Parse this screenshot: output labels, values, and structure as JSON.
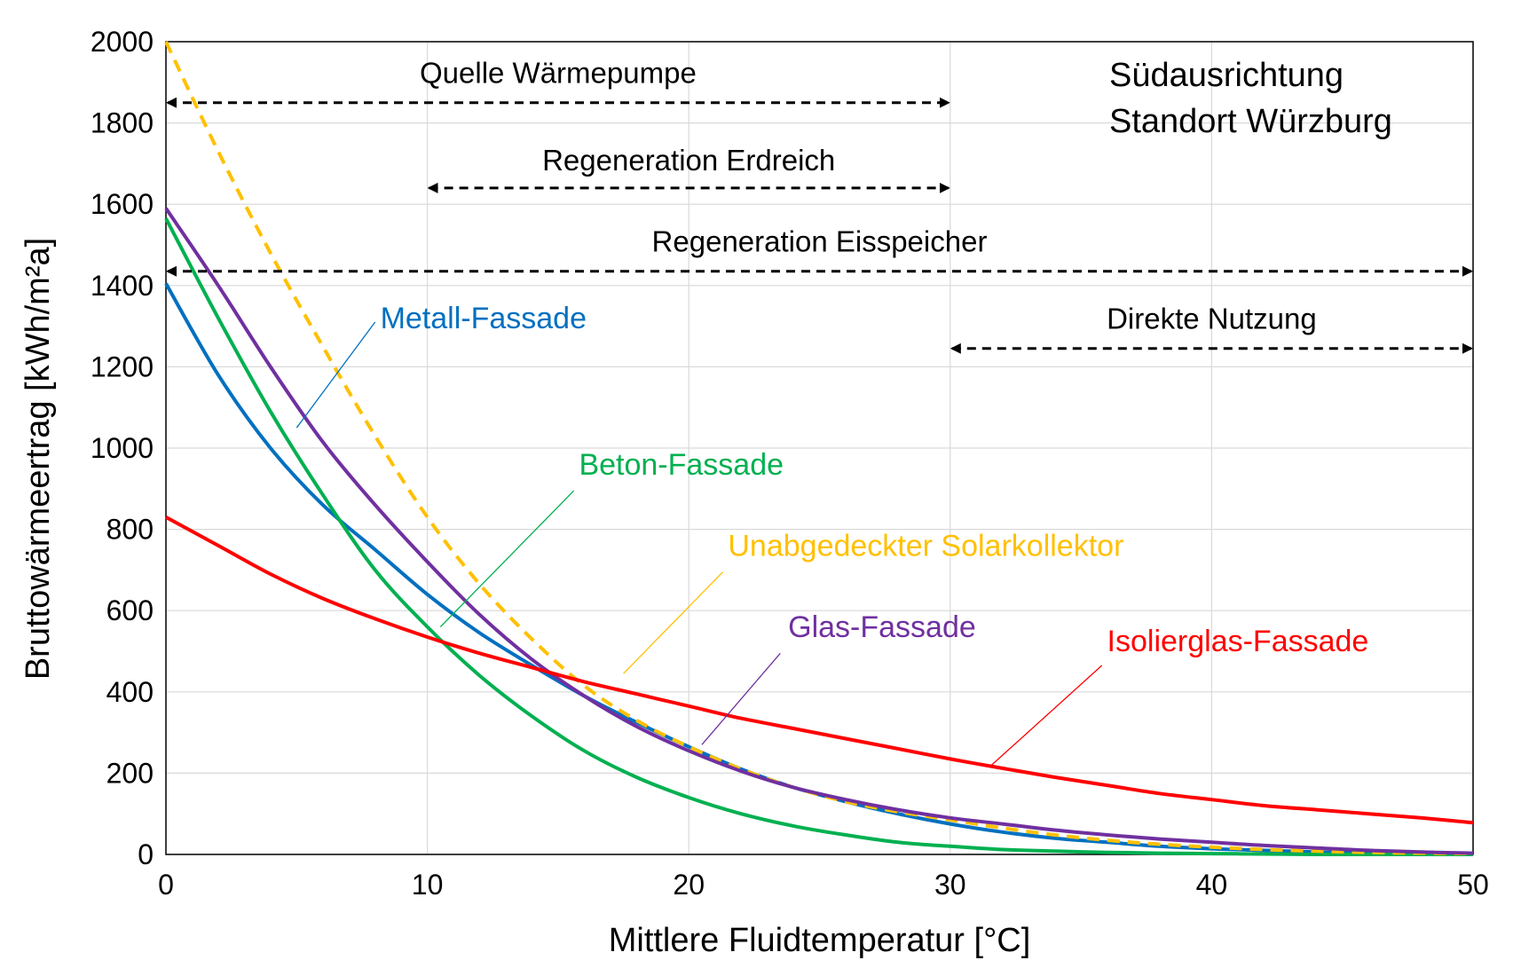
{
  "chart_data": {
    "type": "line",
    "xlabel": "Mittlere Fluidtemperatur [°C]",
    "ylabel": "Bruttowärmeertrag [kWh/m²a]",
    "xlim": [
      0,
      50
    ],
    "ylim": [
      0,
      2000
    ],
    "x_ticks": [
      "0",
      "10",
      "20",
      "30",
      "40",
      "50"
    ],
    "y_ticks": [
      "0",
      "200",
      "400",
      "600",
      "800",
      "1000",
      "1200",
      "1400",
      "1600",
      "1800",
      "2000"
    ],
    "grid": true,
    "info_lines": [
      "Südausrichtung",
      "Standort Würzburg"
    ],
    "ranges": [
      {
        "label": "Quelle Wärmepumpe",
        "from": 0,
        "to": 30,
        "y": 1850,
        "label_y": 1925
      },
      {
        "label": "Regeneration Erdreich",
        "from": 10,
        "to": 30,
        "y": 1640,
        "label_y": 1710
      },
      {
        "label": "Regeneration Eisspeicher",
        "from": 0,
        "to": 50,
        "y": 1435,
        "label_y": 1510
      },
      {
        "label": "Direkte Nutzung",
        "from": 30,
        "to": 50,
        "y": 1245,
        "label_y": 1320
      }
    ],
    "series": [
      {
        "name": "Metall-Fassade",
        "color": "#0070C0",
        "dash": false,
        "x": [
          0,
          2,
          4,
          6,
          8,
          10,
          12,
          14,
          16,
          18,
          20,
          22,
          24,
          26,
          28,
          30,
          32,
          34,
          36,
          38,
          40,
          42,
          44,
          46,
          48,
          50
        ],
        "y": [
          1405,
          1180,
          1000,
          860,
          750,
          640,
          545,
          465,
          390,
          325,
          265,
          210,
          165,
          130,
          100,
          75,
          55,
          40,
          30,
          20,
          14,
          10,
          6,
          4,
          2,
          1
        ],
        "label_pos": [
          8.2,
          1295
        ],
        "leader_from": [
          5.0,
          1050
        ],
        "leader_to": [
          8.0,
          1310
        ]
      },
      {
        "name": "Beton-Fassade",
        "color": "#00B050",
        "dash": false,
        "x": [
          0,
          2,
          4,
          6,
          8,
          10,
          12,
          14,
          16,
          18,
          20,
          22,
          24,
          26,
          28,
          30,
          32,
          34,
          36,
          38,
          40,
          42,
          44,
          46,
          48,
          50
        ],
        "y": [
          1565,
          1320,
          1090,
          885,
          700,
          560,
          440,
          340,
          255,
          190,
          140,
          100,
          70,
          48,
          30,
          20,
          12,
          8,
          5,
          3,
          2,
          1,
          0,
          0,
          0,
          0
        ],
        "label_pos": [
          15.8,
          935
        ],
        "leader_from": [
          10.5,
          560
        ],
        "leader_to": [
          15.6,
          895
        ]
      },
      {
        "name": "Unabgedeckter Solarkollektor",
        "color": "#FFC000",
        "dash": true,
        "x": [
          0,
          2,
          4,
          6,
          8,
          10,
          12,
          14,
          16,
          18,
          20,
          22,
          24,
          26,
          28,
          30,
          32,
          34,
          36,
          38,
          40,
          42,
          44,
          46,
          48,
          50
        ],
        "y": [
          2000,
          1730,
          1480,
          1250,
          1030,
          830,
          665,
          530,
          415,
          330,
          265,
          210,
          165,
          130,
          105,
          85,
          65,
          48,
          35,
          25,
          18,
          12,
          8,
          5,
          3,
          2
        ],
        "label_pos": [
          21.5,
          735
        ],
        "leader_from": [
          17.5,
          445
        ],
        "leader_to": [
          21.3,
          695
        ]
      },
      {
        "name": "Glas-Fassade",
        "color": "#7030A0",
        "dash": false,
        "x": [
          0,
          2,
          4,
          6,
          8,
          10,
          12,
          14,
          16,
          18,
          20,
          22,
          24,
          26,
          28,
          30,
          32,
          34,
          36,
          38,
          40,
          42,
          44,
          46,
          48,
          50
        ],
        "y": [
          1590,
          1400,
          1200,
          1015,
          860,
          720,
          590,
          480,
          390,
          315,
          255,
          205,
          165,
          135,
          110,
          90,
          75,
          60,
          48,
          38,
          30,
          22,
          16,
          10,
          6,
          3
        ],
        "label_pos": [
          23.8,
          535
        ],
        "leader_from": [
          20.5,
          270
        ],
        "leader_to": [
          23.5,
          495
        ]
      },
      {
        "name": "Isolierglas-Fassade",
        "color": "#FF0000",
        "dash": false,
        "x": [
          0,
          2,
          4,
          6,
          8,
          10,
          12,
          14,
          16,
          18,
          20,
          22,
          24,
          26,
          28,
          30,
          32,
          34,
          36,
          38,
          40,
          42,
          44,
          46,
          48,
          50
        ],
        "y": [
          830,
          760,
          690,
          630,
          580,
          535,
          495,
          460,
          425,
          395,
          365,
          335,
          310,
          285,
          260,
          235,
          212,
          190,
          170,
          150,
          135,
          120,
          110,
          100,
          90,
          78
        ],
        "label_pos": [
          36.0,
          500
        ],
        "leader_from": [
          31.5,
          215
        ],
        "leader_to": [
          35.8,
          465
        ]
      }
    ]
  }
}
